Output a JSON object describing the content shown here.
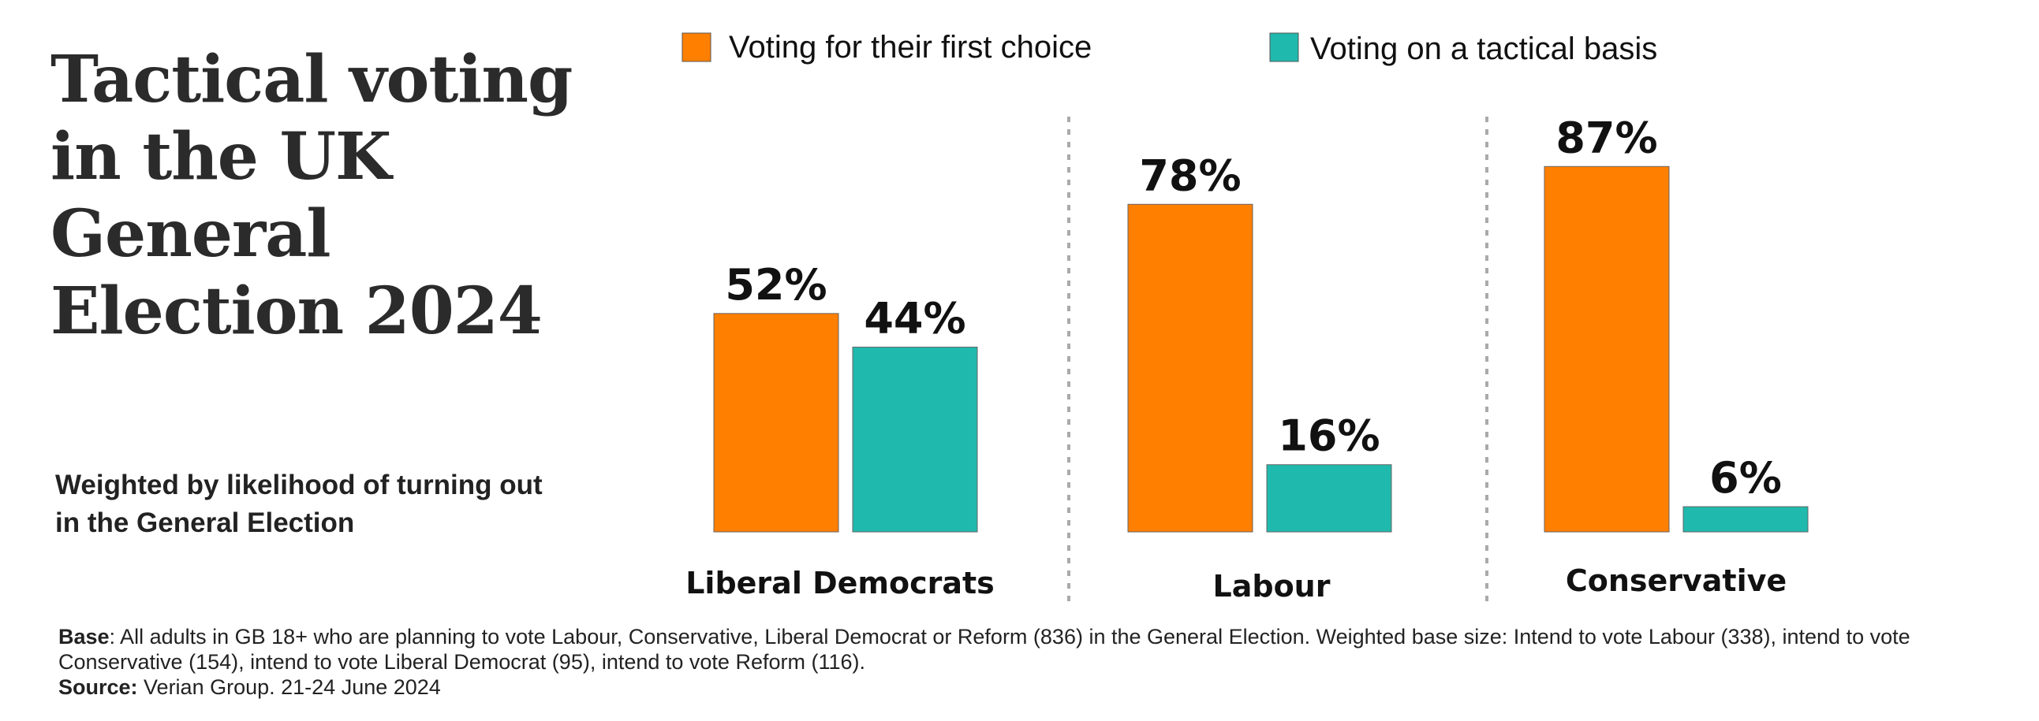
{
  "title": "Tactical voting in the UK General Election 2024",
  "subtitle": "Weighted by likelihood of turning out in the General Election",
  "footnote": {
    "base_label": "Base",
    "base_text": ": All adults in GB 18+ who are planning to vote Labour, Conservative, Liberal Democrat or Reform (836) in the General Election. Weighted base size: Intend to vote Labour (338), intend to vote Conservative (154), intend to vote Liberal Democrat (95), intend to vote Reform (116).",
    "source_label": "Source:",
    "source_text": " Verian Group. 21-24 June 2024"
  },
  "colors": {
    "first_choice": "#FF7F00",
    "tactical": "#20B9AD",
    "divider": "#aaaaaa"
  },
  "chart_data": {
    "type": "bar",
    "categories": [
      "Liberal Democrats",
      "Labour",
      "Conservative"
    ],
    "series": [
      {
        "name": "Voting for their first choice",
        "values": [
          52,
          78,
          87
        ],
        "labels": [
          "52%",
          "78%",
          "87%"
        ]
      },
      {
        "name": "Voting on a tactical basis",
        "values": [
          44,
          16,
          6
        ],
        "labels": [
          "44%",
          "16%",
          "6%"
        ]
      }
    ],
    "ylim": [
      0,
      100
    ],
    "grid": false,
    "legend": "top"
  }
}
